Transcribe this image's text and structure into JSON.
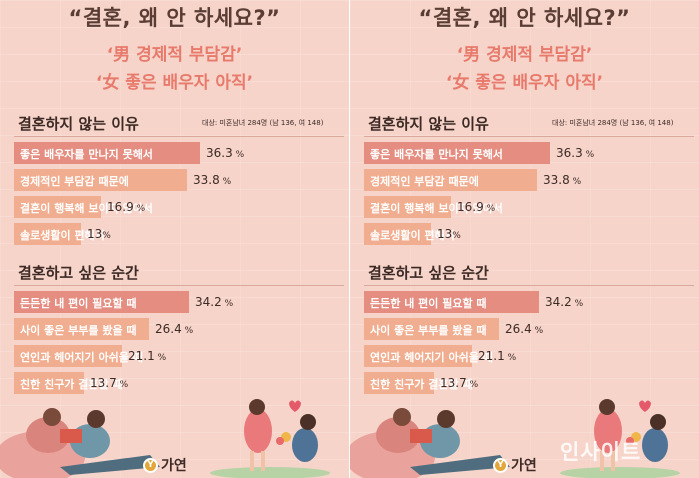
{
  "title": "“결혼, 왜 안 하세요?”",
  "subtitle_1": "‘男 경제적 부담감’",
  "subtitle_2": "‘女 좋은 배우자 아직’",
  "sample_note": "대상: 미혼남녀 284명 (남 136, 여 148)",
  "brand": {
    "logo_mark": "Y",
    "name": "가연"
  },
  "watermark": "인사이트",
  "colors": {
    "dark_bar": "#e48d80",
    "light_bar": "#f1ad8f",
    "title": "#5a3d34",
    "subtitle": "#e87a6c"
  },
  "chart_data": [
    {
      "type": "bar",
      "orientation": "horizontal",
      "title": "결혼하지 않는 이유",
      "categories": [
        "좋은 배우자를 만나지 못해서",
        "경제적인 부담감 때문에",
        "결혼이 행복해 보이지 않아서",
        "솔로생활이 편해서"
      ],
      "values": [
        36.3,
        33.8,
        16.9,
        13
      ],
      "value_labels": [
        "36.3",
        "33.8",
        "16.9",
        "13"
      ],
      "units": [
        "%",
        "%",
        "%",
        "%"
      ],
      "xlim": [
        0,
        40
      ]
    },
    {
      "type": "bar",
      "orientation": "horizontal",
      "title": "결혼하고 싶은 순간",
      "categories": [
        "든든한 내 편이 필요할 때",
        "사이 좋은 부부를 봤을 때",
        "연인과 헤어지기 아쉬울 때",
        "친한 친구가 결혼할 때"
      ],
      "values": [
        34.2,
        26.4,
        21.1,
        13.7
      ],
      "value_labels": [
        "34.2",
        "26.4",
        "21.1",
        "13.7"
      ],
      "units": [
        "%",
        "%",
        "%",
        "%"
      ],
      "xlim": [
        0,
        40
      ]
    }
  ]
}
